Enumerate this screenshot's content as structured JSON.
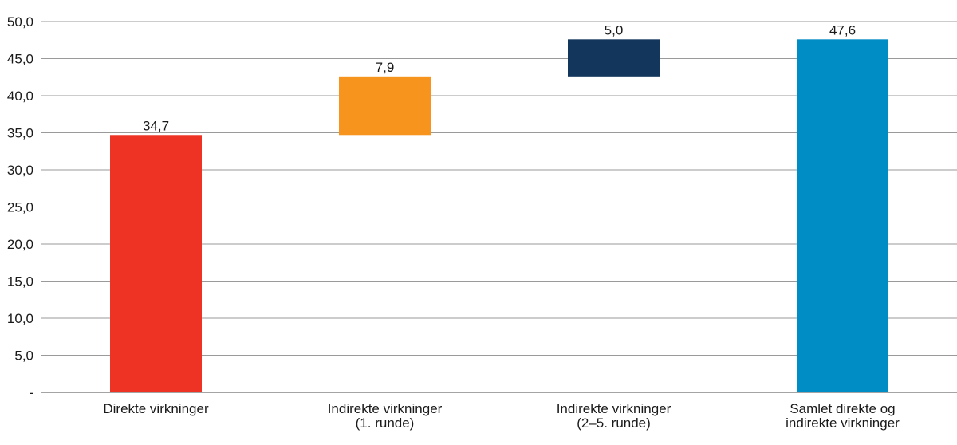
{
  "chart_data": {
    "type": "bar",
    "subtype": "waterfall",
    "categories": [
      [
        "Direkte virkninger"
      ],
      [
        "Indirekte virkninger",
        "(1. runde)"
      ],
      [
        "Indirekte virkninger",
        "(2–5. runde)"
      ],
      [
        "Samlet direkte og",
        "indirekte virkninger"
      ]
    ],
    "bars": [
      {
        "base": 0,
        "value": 34.7,
        "label": "34,7",
        "color": "#ee3224"
      },
      {
        "base": 34.7,
        "value": 7.9,
        "label": "7,9",
        "color": "#f7941d"
      },
      {
        "base": 42.6,
        "value": 5.0,
        "label": "5,0",
        "color": "#13365c"
      },
      {
        "base": 0,
        "value": 47.6,
        "label": "47,6",
        "color": "#008cc4"
      }
    ],
    "ylim": [
      0,
      50
    ],
    "yticks": [
      0,
      5,
      10,
      15,
      20,
      25,
      30,
      35,
      40,
      45,
      50
    ],
    "ytick_labels": [
      "-",
      "5,0",
      "10,0",
      "15,0",
      "20,0",
      "25,0",
      "30,0",
      "35,0",
      "40,0",
      "45,0",
      "50,0"
    ],
    "grid": true,
    "legend": "none"
  }
}
